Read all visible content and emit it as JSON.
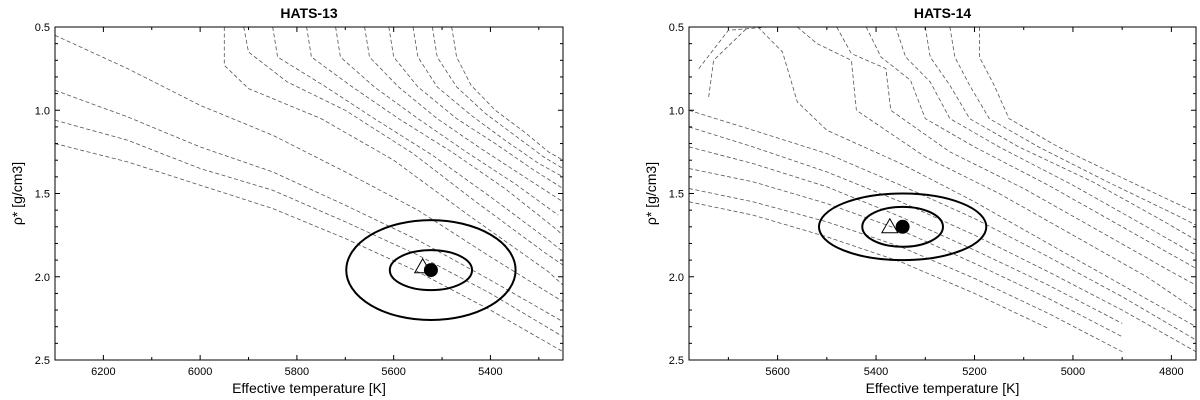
{
  "chart_data": [
    {
      "type": "line",
      "title": "HATS-13",
      "xlabel": "Effective temperature [K]",
      "ylabel": "ρ* [g/cm3]",
      "xlim": [
        6300,
        5250
      ],
      "ylim": [
        0.5,
        2.5
      ],
      "x_ticks": [
        "6200",
        "6000",
        "5800",
        "5600",
        "5400"
      ],
      "x_tick_values": [
        6200,
        6000,
        5800,
        5600,
        5400
      ],
      "y_ticks": [
        "0.5",
        "1.0",
        "1.5",
        "2.0",
        "2.5"
      ],
      "y_tick_values": [
        0.5,
        1.0,
        1.5,
        2.0,
        2.5
      ],
      "y_inverted": true,
      "x_inverted": true,
      "grid": false,
      "isochrones": [
        [
          [
            6300,
            0.55
          ],
          [
            6150,
            0.75
          ],
          [
            6000,
            0.97
          ],
          [
            5850,
            1.15
          ],
          [
            5700,
            1.37
          ],
          [
            5550,
            1.6
          ],
          [
            5400,
            1.88
          ],
          [
            5250,
            2.15
          ]
        ],
        [
          [
            6300,
            0.88
          ],
          [
            6150,
            1.04
          ],
          [
            6000,
            1.22
          ],
          [
            5850,
            1.37
          ],
          [
            5700,
            1.57
          ],
          [
            5550,
            1.78
          ],
          [
            5400,
            2.02
          ],
          [
            5250,
            2.27
          ]
        ],
        [
          [
            6300,
            1.06
          ],
          [
            6150,
            1.18
          ],
          [
            6000,
            1.35
          ],
          [
            5850,
            1.48
          ],
          [
            5700,
            1.67
          ],
          [
            5550,
            1.87
          ],
          [
            5400,
            2.1
          ],
          [
            5250,
            2.36
          ]
        ],
        [
          [
            6300,
            1.2
          ],
          [
            6150,
            1.31
          ],
          [
            6000,
            1.45
          ],
          [
            5850,
            1.59
          ],
          [
            5700,
            1.77
          ],
          [
            5550,
            1.97
          ],
          [
            5400,
            2.2
          ],
          [
            5250,
            2.45
          ]
        ],
        [
          [
            5950,
            0.5
          ],
          [
            5950,
            0.73
          ],
          [
            5900,
            0.87
          ],
          [
            5750,
            1.05
          ],
          [
            5600,
            1.3
          ],
          [
            5450,
            1.62
          ],
          [
            5280,
            1.97
          ],
          [
            5250,
            2.05
          ]
        ],
        [
          [
            5910,
            0.5
          ],
          [
            5900,
            0.65
          ],
          [
            5820,
            0.83
          ],
          [
            5700,
            1.0
          ],
          [
            5560,
            1.26
          ],
          [
            5430,
            1.55
          ],
          [
            5290,
            1.85
          ],
          [
            5250,
            1.93
          ]
        ],
        [
          [
            5850,
            0.5
          ],
          [
            5840,
            0.68
          ],
          [
            5740,
            0.86
          ],
          [
            5640,
            1.05
          ],
          [
            5520,
            1.27
          ],
          [
            5400,
            1.52
          ],
          [
            5280,
            1.78
          ],
          [
            5250,
            1.85
          ]
        ],
        [
          [
            5780,
            0.5
          ],
          [
            5770,
            0.68
          ],
          [
            5690,
            0.85
          ],
          [
            5590,
            1.05
          ],
          [
            5480,
            1.25
          ],
          [
            5370,
            1.47
          ],
          [
            5270,
            1.7
          ],
          [
            5250,
            1.75
          ]
        ],
        [
          [
            5720,
            0.5
          ],
          [
            5710,
            0.68
          ],
          [
            5640,
            0.86
          ],
          [
            5550,
            1.05
          ],
          [
            5450,
            1.25
          ],
          [
            5350,
            1.44
          ],
          [
            5260,
            1.63
          ]
        ],
        [
          [
            5660,
            0.5
          ],
          [
            5650,
            0.68
          ],
          [
            5590,
            0.86
          ],
          [
            5510,
            1.05
          ],
          [
            5420,
            1.23
          ],
          [
            5330,
            1.4
          ],
          [
            5250,
            1.55
          ]
        ],
        [
          [
            5610,
            0.5
          ],
          [
            5600,
            0.68
          ],
          [
            5550,
            0.86
          ],
          [
            5470,
            1.05
          ],
          [
            5390,
            1.2
          ],
          [
            5310,
            1.36
          ],
          [
            5250,
            1.47
          ]
        ],
        [
          [
            5560,
            0.5
          ],
          [
            5550,
            0.68
          ],
          [
            5510,
            0.86
          ],
          [
            5440,
            1.03
          ],
          [
            5370,
            1.18
          ],
          [
            5300,
            1.32
          ],
          [
            5250,
            1.4
          ]
        ],
        [
          [
            5520,
            0.5
          ],
          [
            5510,
            0.68
          ],
          [
            5470,
            0.86
          ],
          [
            5410,
            1.02
          ],
          [
            5350,
            1.15
          ],
          [
            5290,
            1.28
          ],
          [
            5250,
            1.35
          ]
        ],
        [
          [
            5480,
            0.5
          ],
          [
            5470,
            0.68
          ],
          [
            5440,
            0.85
          ],
          [
            5390,
            1.0
          ],
          [
            5330,
            1.13
          ],
          [
            5280,
            1.25
          ],
          [
            5250,
            1.3
          ]
        ]
      ],
      "measurement": {
        "teff": 5523,
        "rho": 1.96
      },
      "model_point": {
        "teff": 5540,
        "rho": 1.94
      },
      "ellipses": [
        {
          "teff": 5523,
          "rho": 1.96,
          "dteff": 85,
          "drho": 0.12
        },
        {
          "teff": 5523,
          "rho": 1.96,
          "dteff": 175,
          "drho": 0.3
        }
      ]
    },
    {
      "type": "line",
      "title": "HATS-14",
      "xlabel": "Effective temperature [K]",
      "ylabel": "ρ* [g/cm3]",
      "xlim": [
        5780,
        4750
      ],
      "ylim": [
        0.5,
        2.5
      ],
      "x_ticks": [
        "5600",
        "5400",
        "5200",
        "5000",
        "4800"
      ],
      "x_tick_values": [
        5600,
        5400,
        5200,
        5000,
        4800
      ],
      "y_ticks": [
        "0.5",
        "1.0",
        "1.5",
        "2.0",
        "2.5"
      ],
      "y_tick_values": [
        0.5,
        1.0,
        1.5,
        2.0,
        2.5
      ],
      "y_inverted": true,
      "x_inverted": true,
      "grid": false,
      "isochrones": [
        [
          [
            5780,
            1.0
          ],
          [
            5650,
            1.12
          ],
          [
            5500,
            1.26
          ],
          [
            5350,
            1.45
          ],
          [
            5200,
            1.65
          ],
          [
            5050,
            1.88
          ],
          [
            4900,
            2.12
          ],
          [
            4750,
            2.38
          ]
        ],
        [
          [
            5780,
            1.1
          ],
          [
            5650,
            1.22
          ],
          [
            5500,
            1.37
          ],
          [
            5350,
            1.55
          ],
          [
            5200,
            1.75
          ],
          [
            5050,
            1.97
          ],
          [
            4900,
            2.2
          ],
          [
            4750,
            2.45
          ]
        ],
        [
          [
            5780,
            1.22
          ],
          [
            5650,
            1.32
          ],
          [
            5500,
            1.46
          ],
          [
            5350,
            1.64
          ],
          [
            5200,
            1.84
          ],
          [
            5050,
            2.05
          ],
          [
            4900,
            2.28
          ]
        ],
        [
          [
            5780,
            1.35
          ],
          [
            5650,
            1.43
          ],
          [
            5500,
            1.56
          ],
          [
            5350,
            1.72
          ],
          [
            5200,
            1.92
          ],
          [
            5050,
            2.13
          ],
          [
            4900,
            2.36
          ]
        ],
        [
          [
            5780,
            1.47
          ],
          [
            5650,
            1.55
          ],
          [
            5500,
            1.67
          ],
          [
            5350,
            1.82
          ],
          [
            5200,
            2.01
          ],
          [
            5050,
            2.22
          ],
          [
            4900,
            2.45
          ]
        ],
        [
          [
            5780,
            1.55
          ],
          [
            5650,
            1.63
          ],
          [
            5500,
            1.76
          ],
          [
            5350,
            1.91
          ],
          [
            5200,
            2.1
          ],
          [
            5050,
            2.31
          ]
        ],
        [
          [
            5760,
            0.75
          ],
          [
            5700,
            0.52
          ],
          [
            5620,
            0.5
          ]
        ],
        [
          [
            5740,
            0.92
          ],
          [
            5730,
            0.7
          ],
          [
            5660,
            0.5
          ]
        ],
        [
          [
            5640,
            0.5
          ],
          [
            5590,
            0.65
          ],
          [
            5560,
            0.95
          ],
          [
            5500,
            1.12
          ],
          [
            5350,
            1.32
          ],
          [
            5200,
            1.55
          ],
          [
            5050,
            1.8
          ],
          [
            4900,
            2.05
          ],
          [
            4750,
            2.3
          ]
        ],
        [
          [
            5560,
            0.5
          ],
          [
            5520,
            0.6
          ],
          [
            5450,
            0.7
          ],
          [
            5440,
            1.0
          ],
          [
            5300,
            1.28
          ],
          [
            5150,
            1.5
          ],
          [
            5000,
            1.75
          ],
          [
            4850,
            2.0
          ],
          [
            4750,
            2.2
          ]
        ],
        [
          [
            5480,
            0.5
          ],
          [
            5450,
            0.66
          ],
          [
            5380,
            0.75
          ],
          [
            5370,
            1.0
          ],
          [
            5250,
            1.25
          ],
          [
            5100,
            1.47
          ],
          [
            4950,
            1.72
          ],
          [
            4800,
            1.97
          ],
          [
            4750,
            2.05
          ]
        ],
        [
          [
            5420,
            0.5
          ],
          [
            5390,
            0.68
          ],
          [
            5330,
            0.82
          ],
          [
            5300,
            1.05
          ],
          [
            5200,
            1.22
          ],
          [
            5050,
            1.45
          ],
          [
            4900,
            1.7
          ],
          [
            4750,
            1.95
          ]
        ],
        [
          [
            5360,
            0.5
          ],
          [
            5340,
            0.68
          ],
          [
            5290,
            0.83
          ],
          [
            5250,
            1.05
          ],
          [
            5150,
            1.22
          ],
          [
            5000,
            1.45
          ],
          [
            4850,
            1.7
          ],
          [
            4750,
            1.87
          ]
        ],
        [
          [
            5300,
            0.5
          ],
          [
            5290,
            0.68
          ],
          [
            5250,
            0.85
          ],
          [
            5210,
            1.05
          ],
          [
            5110,
            1.22
          ],
          [
            4960,
            1.43
          ],
          [
            4820,
            1.66
          ],
          [
            4750,
            1.78
          ]
        ],
        [
          [
            5250,
            0.5
          ],
          [
            5240,
            0.68
          ],
          [
            5210,
            0.85
          ],
          [
            5170,
            1.05
          ],
          [
            5070,
            1.22
          ],
          [
            4930,
            1.43
          ],
          [
            4790,
            1.63
          ],
          [
            4750,
            1.69
          ]
        ],
        [
          [
            5190,
            0.5
          ],
          [
            5190,
            0.68
          ],
          [
            5160,
            0.85
          ],
          [
            5130,
            1.05
          ],
          [
            5030,
            1.22
          ],
          [
            4890,
            1.42
          ],
          [
            4760,
            1.6
          ]
        ]
      ],
      "measurement": {
        "teff": 5346,
        "rho": 1.7
      },
      "model_point": {
        "teff": 5372,
        "rho": 1.7
      },
      "ellipses": [
        {
          "teff": 5346,
          "rho": 1.7,
          "dteff": 82,
          "drho": 0.12
        },
        {
          "teff": 5346,
          "rho": 1.7,
          "dteff": 170,
          "drho": 0.2
        }
      ]
    }
  ]
}
